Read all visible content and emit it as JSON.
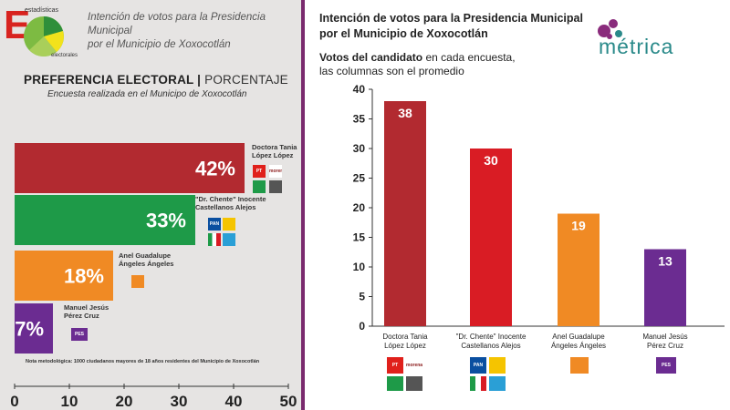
{
  "left_panel": {
    "brand_letter": "E",
    "brand_small_top": "estadísticas",
    "brand_small_bottom": "electorales",
    "title_line1": "Intención de votos para la Presidencia Municipal",
    "title_line2": "por el Municipio de Xoxocotlán",
    "heading_bold": "PREFERENCIA ELECTORAL |",
    "heading_light": "PORCENTAJE",
    "subtitle": "Encuesta realizada en el Municipo de Xoxocotlán",
    "note": "Nota metodológica: 1000 ciudadanos mayores de 18 años residentes del Municipio de Xoxocotlán"
  },
  "right_panel": {
    "title_line1": "Intención de votos para la Presidencia Municipal",
    "title_line2": "por el Municipio de Xoxocotlán",
    "subtitle_bold": "Votos del candidato",
    "subtitle_rest": " en cada encuesta,",
    "subtitle_line2": "las columnas son el promedio",
    "brand": "métrica"
  },
  "party_logos": {
    "pt": "PT",
    "morena": "morena",
    "pan": "PAN",
    "prd": "PRD",
    "pri": "PRI",
    "pes": "PES"
  },
  "colors": {
    "red_dark": "#b22a30",
    "green": "#1e9a48",
    "orange": "#f08a24",
    "purple": "#6b2c91",
    "red_bright": "#d91c24",
    "teal": "#2a8a8a",
    "divider": "#7a2a6e"
  },
  "chart_data": [
    {
      "type": "bar",
      "orientation": "horizontal",
      "categories": [
        "Doctora Tania López López",
        "\"Dr. Chente\" Inocente Castellanos Alejos",
        "Anel Guadalupe Ángeles Ángeles",
        "Manuel Jesús Pérez Cruz"
      ],
      "label_lines": [
        [
          "Doctora Tania",
          "López López"
        ],
        [
          "\"Dr. Chente\" Inocente",
          "Castellanos Alejos"
        ],
        [
          "Anel Guadalupe",
          "Ángeles Ángeles"
        ],
        [
          "Manuel Jesús",
          "Pérez Cruz"
        ]
      ],
      "values": [
        42,
        33,
        18,
        7
      ],
      "value_labels": [
        "42%",
        "33%",
        "18%",
        "7%"
      ],
      "colors": [
        "#b22a30",
        "#1e9a48",
        "#f08a24",
        "#6b2c91"
      ],
      "xlim": [
        0,
        50
      ],
      "xticks": [
        0,
        10,
        20,
        30,
        40,
        50
      ],
      "grid": false
    },
    {
      "type": "bar",
      "orientation": "vertical",
      "categories": [
        "Doctora Tania López López",
        "\"Dr. Chente\" Inocente Castellanos Alejos",
        "Anel Guadalupe Ángeles Ángeles",
        "Manuel Jesús Pérez Cruz"
      ],
      "label_lines": [
        [
          "Doctora Tania",
          "López López"
        ],
        [
          "\"Dr. Chente\" Inocente",
          "Castellanos Alejos"
        ],
        [
          "Anel Guadalupe",
          "Ángeles Ángeles"
        ],
        [
          "Manuel Jesús",
          "Pérez Cruz"
        ]
      ],
      "values": [
        38,
        30,
        19,
        13
      ],
      "colors": [
        "#b22a30",
        "#d91c24",
        "#f08a24",
        "#6b2c91"
      ],
      "ylim": [
        0,
        40
      ],
      "yticks": [
        0,
        5,
        10,
        15,
        20,
        25,
        30,
        35,
        40
      ],
      "grid": false
    }
  ]
}
